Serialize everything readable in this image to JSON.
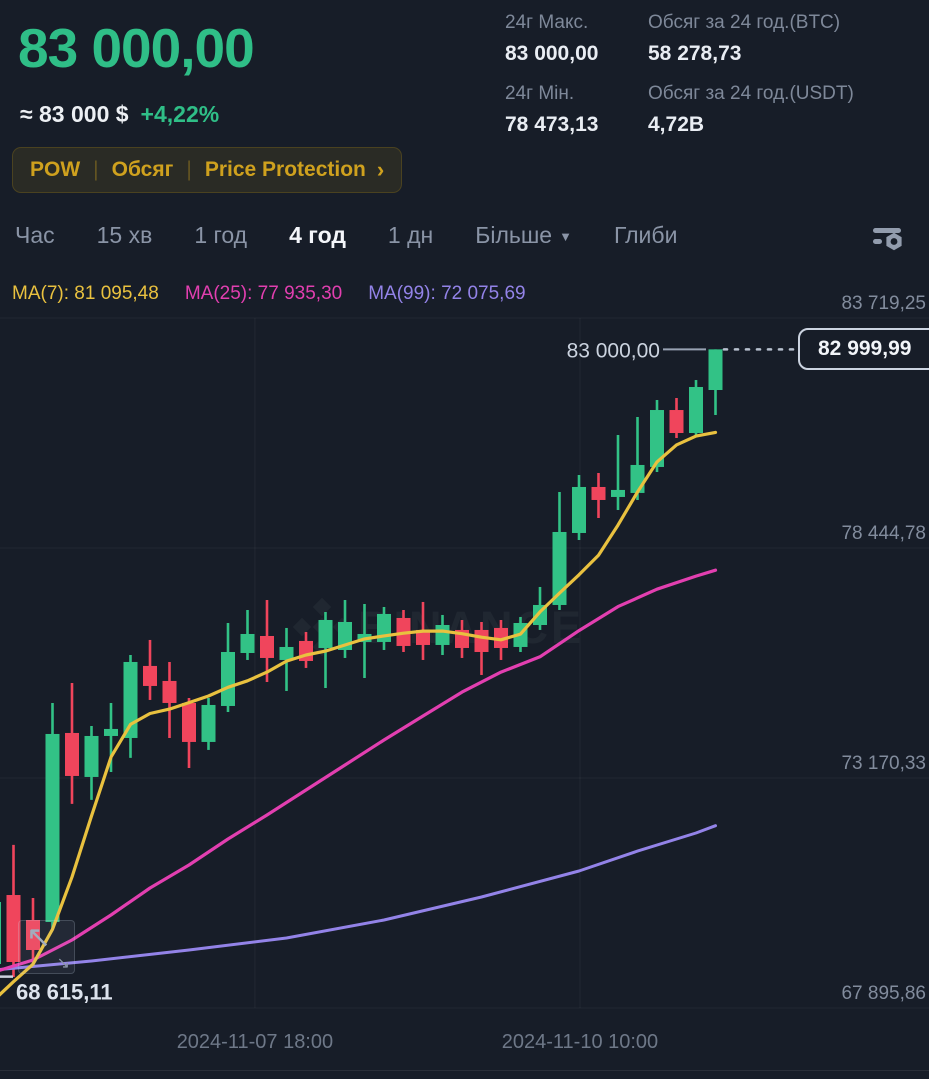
{
  "header": {
    "price": "83 000,00",
    "approx": "≈ 83 000 $",
    "change": "+4,22%",
    "tags": [
      "POW",
      "Обсяг",
      "Price Protection"
    ],
    "tag_chevron": "›",
    "stats": [
      {
        "label": "24г Макс.",
        "value": "83 000,00"
      },
      {
        "label": "Обсяг за 24 год.(BTC)",
        "value": "58 278,73"
      },
      {
        "label": "24г Мін.",
        "value": "78 473,13"
      },
      {
        "label": "Обсяг за 24 год.(USDT)",
        "value": "4,72B"
      }
    ],
    "accent_gold": "#CFA11E",
    "price_green": "#2FBE87"
  },
  "tabs": {
    "items": [
      "Час",
      "15 хв",
      "1 год",
      "4 год",
      "1 дн"
    ],
    "active": "4 год",
    "more_label": "Більше",
    "more_caret": "▼",
    "depth_label": "Глиби"
  },
  "indicators": [
    {
      "label": "MA(7):",
      "value": "81 095,48",
      "color": "#E9C13F"
    },
    {
      "label": "MA(25):",
      "value": "77 935,30",
      "color": "#E23FB0"
    },
    {
      "label": "MA(99):",
      "value": "72 075,69",
      "color": "#9383E8"
    }
  ],
  "icons": {
    "expand_nw": "↖",
    "expand_se": "↘"
  },
  "chart_data": {
    "type": "candlestick",
    "interval": "4 год",
    "watermark": "BINANCE",
    "colors": {
      "up": "#32C286",
      "down": "#F0455C",
      "ma7": "#E9C13F",
      "ma25": "#E23FB0",
      "ma99": "#9383E8"
    },
    "y_axis_labels": [
      "83 719,25",
      "78 444,78",
      "73 170,33",
      "67 895,86"
    ],
    "y_gridline_prices": [
      83719.25,
      78444.78,
      73170.33,
      67895.86
    ],
    "x_axis_labels": [
      {
        "text": "2024-11-07 18:00",
        "index": 13.38
      },
      {
        "text": "2024-11-10 10:00",
        "index": 30.05
      }
    ],
    "annotations": {
      "high_label": {
        "text": "83 000,00",
        "price": 83000.0
      },
      "current_price": {
        "text": "82 999,99",
        "price": 82999.99
      },
      "low_label": {
        "text": "68 615,11",
        "price": 68615.11
      }
    },
    "candles": [
      [
        68905,
        70400,
        68770,
        70327
      ],
      [
        70487,
        71636,
        68607,
        68951
      ],
      [
        69914,
        70418,
        68905,
        69226
      ],
      [
        69868,
        74891,
        69685,
        74180
      ],
      [
        74203,
        75350,
        72576,
        73217
      ],
      [
        73194,
        74364,
        72668,
        74134
      ],
      [
        74134,
        74891,
        73309,
        74295
      ],
      [
        74088,
        75991,
        73631,
        75831
      ],
      [
        75740,
        76336,
        74960,
        75281
      ],
      [
        75396,
        75831,
        74088,
        74891
      ],
      [
        74891,
        75005,
        73400,
        73997
      ],
      [
        73997,
        75005,
        73814,
        74845
      ],
      [
        74822,
        76725,
        74685,
        76060
      ],
      [
        76037,
        77023,
        75877,
        76473
      ],
      [
        76427,
        77252,
        75373,
        75923
      ],
      [
        75877,
        76611,
        75166,
        76175
      ],
      [
        76313,
        76519,
        75694,
        75854
      ],
      [
        76152,
        76978,
        75235,
        76794
      ],
      [
        76106,
        77252,
        75923,
        76748
      ],
      [
        76290,
        77161,
        75464,
        76473
      ],
      [
        76290,
        77092,
        76106,
        76932
      ],
      [
        76840,
        77023,
        76060,
        76198
      ],
      [
        76565,
        77207,
        75877,
        76221
      ],
      [
        76221,
        76909,
        75991,
        76679
      ],
      [
        76565,
        76794,
        75923,
        76152
      ],
      [
        76565,
        76748,
        75533,
        76060
      ],
      [
        76611,
        76794,
        75877,
        76152
      ],
      [
        76175,
        76863,
        76060,
        76725
      ],
      [
        76679,
        77551,
        76565,
        77138
      ],
      [
        77138,
        79730,
        77023,
        78812
      ],
      [
        78789,
        80119,
        78629,
        79844
      ],
      [
        79844,
        80165,
        79133,
        79546
      ],
      [
        79615,
        81036,
        79317,
        79776
      ],
      [
        79707,
        81449,
        79546,
        80349
      ],
      [
        80303,
        81839,
        80188,
        81609
      ],
      [
        81609,
        81885,
        80967,
        81082
      ],
      [
        81082,
        82297,
        80990,
        82137
      ],
      [
        82068,
        83000.0,
        81495,
        82999.99
      ]
    ],
    "ma_lines": [
      {
        "name": "MA(7)",
        "color": "#E9C13F",
        "width": 3.2,
        "points": [
          [
            0,
            68079
          ],
          [
            1,
            68500
          ],
          [
            2,
            68900
          ],
          [
            3,
            69700
          ],
          [
            4,
            70900
          ],
          [
            5,
            72300
          ],
          [
            6,
            73650
          ],
          [
            7,
            74400
          ],
          [
            8,
            74650
          ],
          [
            9,
            74750
          ],
          [
            10,
            74900
          ],
          [
            11,
            75050
          ],
          [
            12,
            75250
          ],
          [
            13,
            75400
          ],
          [
            14,
            75600
          ],
          [
            15,
            75850
          ],
          [
            16,
            75990
          ],
          [
            17,
            76080
          ],
          [
            18,
            76220
          ],
          [
            19,
            76360
          ],
          [
            20,
            76430
          ],
          [
            21,
            76490
          ],
          [
            22,
            76540
          ],
          [
            23,
            76540
          ],
          [
            24,
            76480
          ],
          [
            25,
            76400
          ],
          [
            26,
            76340
          ],
          [
            27,
            76470
          ],
          [
            28,
            76980
          ],
          [
            29,
            77410
          ],
          [
            30,
            77830
          ],
          [
            31,
            78280
          ],
          [
            32,
            78970
          ],
          [
            33,
            79730
          ],
          [
            34,
            80420
          ],
          [
            35,
            80810
          ],
          [
            36,
            81010
          ],
          [
            37,
            81095.48
          ]
        ]
      },
      {
        "name": "MA(25)",
        "color": "#E23FB0",
        "width": 3.2,
        "points": [
          [
            0,
            68721
          ],
          [
            2,
            68996
          ],
          [
            4,
            69455
          ],
          [
            6,
            70028
          ],
          [
            8,
            70647
          ],
          [
            10,
            71175
          ],
          [
            12,
            71771
          ],
          [
            14,
            72321
          ],
          [
            16,
            72894
          ],
          [
            18,
            73468
          ],
          [
            20,
            74041
          ],
          [
            22,
            74591
          ],
          [
            24,
            75141
          ],
          [
            26,
            75600
          ],
          [
            28,
            75950
          ],
          [
            30,
            76550
          ],
          [
            32,
            77100
          ],
          [
            34,
            77500
          ],
          [
            36,
            77800
          ],
          [
            37,
            77935.3
          ]
        ]
      },
      {
        "name": "MA(99)",
        "color": "#9383E8",
        "width": 3.0,
        "points": [
          [
            0,
            68767
          ],
          [
            5,
            68973
          ],
          [
            10,
            69225
          ],
          [
            15,
            69500
          ],
          [
            20,
            69913
          ],
          [
            25,
            70441
          ],
          [
            30,
            71037
          ],
          [
            33,
            71495
          ],
          [
            36,
            71908
          ],
          [
            37,
            72075.69
          ]
        ]
      }
    ]
  }
}
